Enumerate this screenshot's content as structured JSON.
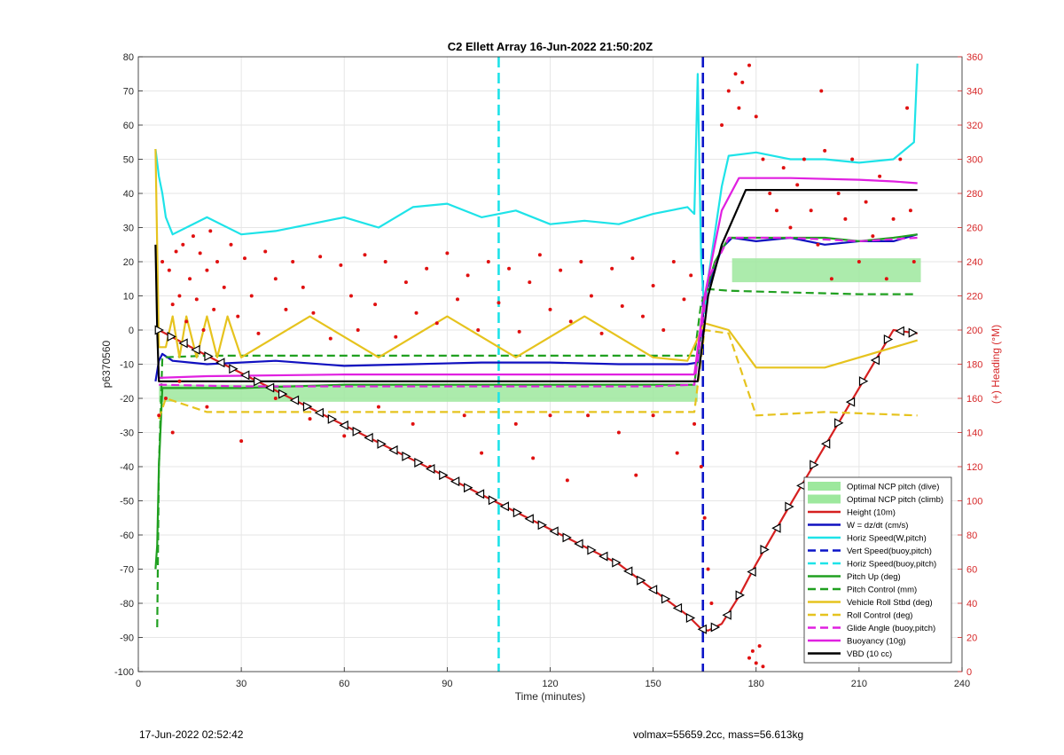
{
  "footer": {
    "timestamp": "17-Jun-2022 02:52:42",
    "params": "volmax=55659.2cc, mass=56.613kg"
  },
  "chart_data": {
    "type": "line",
    "title": "C2 Ellett Array 16-Jun-2022 21:50:20Z",
    "xlabel": "Time (minutes)",
    "ylabel": "p6370560",
    "y2label": "(+) Heading (°M)",
    "xlim": [
      0,
      240
    ],
    "ylim": [
      -100,
      80
    ],
    "y2lim": [
      0,
      360
    ],
    "xticks": [
      0,
      30,
      60,
      90,
      120,
      150,
      180,
      210,
      240
    ],
    "yticks": [
      -100,
      -90,
      -80,
      -70,
      -60,
      -50,
      -40,
      -30,
      -20,
      -10,
      0,
      10,
      20,
      30,
      40,
      50,
      60,
      70,
      80
    ],
    "y2ticks": [
      0,
      20,
      40,
      60,
      80,
      100,
      120,
      140,
      160,
      180,
      200,
      220,
      240,
      260,
      280,
      300,
      320,
      340,
      360
    ],
    "grid": true,
    "legend_position": "bottom-right",
    "vertical_lines": [
      {
        "x": 105,
        "color": "#1ee3e8",
        "style": "dashed"
      },
      {
        "x": 164.5,
        "color": "#0a14c8",
        "style": "dashed"
      }
    ],
    "series": [
      {
        "name": "Optimal NCP pitch (dive)",
        "color": "#9de89d",
        "style": "band",
        "x": [
          6,
          163
        ],
        "y_low": [
          -21,
          -21
        ],
        "y_high": [
          -16,
          -16
        ]
      },
      {
        "name": "Optimal NCP pitch (climb)",
        "color": "#9de89d",
        "style": "band",
        "x": [
          173,
          228
        ],
        "y_low": [
          14,
          14
        ],
        "y_high": [
          21,
          21
        ]
      },
      {
        "name": "Height (10m)",
        "color": "#d62020",
        "style": "solid",
        "x": [
          6,
          20,
          40,
          60,
          80,
          100,
          120,
          140,
          160,
          164,
          166,
          170,
          175,
          180,
          190,
          200,
          210,
          220,
          227
        ],
        "y": [
          0,
          -7.5,
          -17.7,
          -27.9,
          -38,
          -48.2,
          -58.3,
          -68.5,
          -83.5,
          -87.5,
          -88,
          -86,
          -78,
          -68.5,
          -51,
          -34,
          -17,
          0,
          -1
        ]
      },
      {
        "name": "W = dz/dt (cm/s)",
        "color": "#1010c0",
        "style": "solid",
        "x": [
          5,
          6,
          7,
          10,
          20,
          40,
          60,
          80,
          100,
          120,
          140,
          160,
          163,
          165,
          168,
          170,
          173,
          180,
          190,
          200,
          210,
          220,
          227
        ],
        "y": [
          -15,
          -9,
          -7,
          -9,
          -10,
          -9,
          -10.5,
          -10,
          -9.5,
          -9.5,
          -10,
          -10,
          -9.5,
          10,
          18,
          24,
          27,
          26,
          27,
          25,
          26,
          26,
          28
        ]
      },
      {
        "name": "Horiz Speed(W,pitch)",
        "color": "#1ee3e8",
        "style": "solid",
        "x": [
          5,
          6,
          7,
          8,
          10,
          20,
          30,
          40,
          50,
          60,
          70,
          80,
          90,
          100,
          110,
          120,
          130,
          140,
          150,
          160,
          162,
          163,
          164,
          165,
          166,
          170,
          172,
          180,
          190,
          200,
          210,
          220,
          226,
          227
        ],
        "y": [
          53,
          45,
          40,
          33,
          28,
          33,
          28,
          29,
          31,
          33,
          30,
          36,
          37,
          33,
          35,
          31,
          32,
          31,
          34,
          36,
          34,
          75,
          20,
          5,
          15,
          42,
          51,
          52,
          50,
          50,
          49,
          50,
          55,
          78
        ]
      },
      {
        "name": "Vert Speed(buoy,pitch)",
        "color": "#0a14c8",
        "style": "dashed",
        "x": [
          164.5,
          164.5
        ],
        "y": [
          -100,
          80
        ]
      },
      {
        "name": "Horiz Speed(buoy,pitch)",
        "color": "#1ee3e8",
        "style": "dashed",
        "x": [
          105,
          105
        ],
        "y": [
          -100,
          80
        ]
      },
      {
        "name": "Pitch Up (deg)",
        "color": "#20a020",
        "style": "solid",
        "x": [
          5,
          5.5,
          6,
          7,
          10,
          30,
          60,
          90,
          120,
          150,
          162,
          165,
          168,
          172,
          180,
          190,
          200,
          210,
          220,
          227
        ],
        "y": [
          -70,
          -63,
          -40,
          -17,
          -17,
          -17,
          -16,
          -16,
          -16,
          -16,
          -16,
          10,
          20,
          27,
          27,
          27,
          27,
          26,
          27,
          28
        ]
      },
      {
        "name": "Pitch Control (mm)",
        "color": "#20a020",
        "style": "dashed",
        "x": [
          5.5,
          6,
          7,
          20,
          60,
          100,
          140,
          162,
          164,
          166,
          172,
          190,
          210,
          227
        ],
        "y": [
          -87,
          -40,
          -8,
          -7.5,
          -7.5,
          -7.5,
          -7.5,
          -7.5,
          8,
          12,
          11.5,
          11,
          10.5,
          10.5
        ]
      },
      {
        "name": "Vehicle Roll Stbd (deg)",
        "color": "#e6c31e",
        "style": "solid",
        "x": [
          5,
          6,
          8,
          10,
          12,
          14,
          17,
          20,
          23,
          26,
          30,
          50,
          70,
          90,
          110,
          130,
          150,
          160,
          165,
          172,
          180,
          200,
          227
        ],
        "y": [
          53,
          -5,
          -5,
          4,
          -8,
          4,
          -8,
          4,
          -8,
          4,
          -8,
          4,
          -8,
          4,
          -8,
          4,
          -8,
          -9,
          2,
          0,
          -11,
          -11,
          -3
        ]
      },
      {
        "name": "Roll Control (deg)",
        "color": "#e6c31e",
        "style": "dashed",
        "x": [
          6,
          8,
          20,
          60,
          100,
          140,
          162,
          165,
          172,
          180,
          200,
          227
        ],
        "y": [
          -26,
          -20,
          -24,
          -24,
          -24,
          -24,
          -24,
          0,
          -1,
          -25,
          -24,
          -25
        ]
      },
      {
        "name": "Glide Angle (buoy,pitch)",
        "color": "#e020e0",
        "style": "dashed",
        "x": [
          6,
          30,
          60,
          90,
          120,
          150,
          162,
          166,
          172,
          190,
          210,
          227
        ],
        "y": [
          -16,
          -16.5,
          -16.5,
          -16.5,
          -16.5,
          -16.5,
          -16,
          15,
          27,
          27,
          26,
          27
        ]
      },
      {
        "name": "Buoyancy (10g)",
        "color": "#e020e0",
        "style": "solid",
        "x": [
          6,
          20,
          60,
          100,
          140,
          162,
          165,
          170,
          175,
          190,
          210,
          220,
          227
        ],
        "y": [
          -14,
          -13.5,
          -13,
          -13,
          -13,
          -13,
          10,
          35,
          44.5,
          44.5,
          44,
          43.5,
          43
        ]
      },
      {
        "name": "VBD (10 cc)",
        "color": "#000000",
        "style": "solid",
        "x": [
          5,
          5.5,
          6,
          7,
          20,
          60,
          100,
          140,
          163,
          166,
          170,
          177,
          200,
          227
        ],
        "y": [
          25,
          0,
          -15,
          -15,
          -15,
          -15,
          -15,
          -15,
          -15,
          10,
          25,
          41,
          41,
          41
        ]
      }
    ],
    "heading_points": [
      [
        7,
        240
      ],
      [
        9,
        235
      ],
      [
        10,
        215
      ],
      [
        11,
        246
      ],
      [
        12,
        220
      ],
      [
        13,
        250
      ],
      [
        14,
        205
      ],
      [
        15,
        230
      ],
      [
        16,
        255
      ],
      [
        17,
        218
      ],
      [
        18,
        245
      ],
      [
        19,
        200
      ],
      [
        20,
        235
      ],
      [
        21,
        258
      ],
      [
        22,
        212
      ],
      [
        23,
        240
      ],
      [
        25,
        225
      ],
      [
        27,
        250
      ],
      [
        29,
        208
      ],
      [
        31,
        242
      ],
      [
        33,
        220
      ],
      [
        35,
        198
      ],
      [
        37,
        246
      ],
      [
        40,
        230
      ],
      [
        43,
        212
      ],
      [
        45,
        240
      ],
      [
        48,
        225
      ],
      [
        51,
        210
      ],
      [
        53,
        243
      ],
      [
        56,
        195
      ],
      [
        59,
        238
      ],
      [
        62,
        220
      ],
      [
        64,
        200
      ],
      [
        66,
        244
      ],
      [
        69,
        215
      ],
      [
        72,
        240
      ],
      [
        75,
        196
      ],
      [
        78,
        228
      ],
      [
        81,
        210
      ],
      [
        84,
        236
      ],
      [
        87,
        204
      ],
      [
        90,
        245
      ],
      [
        93,
        218
      ],
      [
        96,
        232
      ],
      [
        99,
        200
      ],
      [
        102,
        240
      ],
      [
        105,
        216
      ],
      [
        108,
        236
      ],
      [
        111,
        199
      ],
      [
        114,
        228
      ],
      [
        117,
        244
      ],
      [
        120,
        212
      ],
      [
        123,
        235
      ],
      [
        126,
        205
      ],
      [
        129,
        240
      ],
      [
        132,
        220
      ],
      [
        135,
        198
      ],
      [
        138,
        236
      ],
      [
        141,
        214
      ],
      [
        144,
        242
      ],
      [
        147,
        208
      ],
      [
        150,
        226
      ],
      [
        153,
        200
      ],
      [
        156,
        240
      ],
      [
        159,
        218
      ],
      [
        161,
        232
      ],
      [
        6,
        150
      ],
      [
        8,
        160
      ],
      [
        10,
        140
      ],
      [
        12,
        170
      ],
      [
        20,
        155
      ],
      [
        30,
        135
      ],
      [
        40,
        160
      ],
      [
        50,
        148
      ],
      [
        60,
        138
      ],
      [
        70,
        155
      ],
      [
        80,
        145
      ],
      [
        85,
        120
      ],
      [
        95,
        150
      ],
      [
        100,
        128
      ],
      [
        110,
        145
      ],
      [
        115,
        125
      ],
      [
        120,
        150
      ],
      [
        125,
        112
      ],
      [
        131,
        150
      ],
      [
        140,
        140
      ],
      [
        145,
        115
      ],
      [
        150,
        150
      ],
      [
        157,
        128
      ],
      [
        162,
        145
      ],
      [
        164,
        120
      ],
      [
        165,
        90
      ],
      [
        166,
        60
      ],
      [
        167,
        40
      ],
      [
        170,
        320
      ],
      [
        172,
        340
      ],
      [
        174,
        350
      ],
      [
        175,
        330
      ],
      [
        176,
        345
      ],
      [
        178,
        355
      ],
      [
        180,
        325
      ],
      [
        182,
        300
      ],
      [
        184,
        280
      ],
      [
        186,
        270
      ],
      [
        188,
        295
      ],
      [
        190,
        260
      ],
      [
        192,
        285
      ],
      [
        194,
        300
      ],
      [
        196,
        270
      ],
      [
        198,
        250
      ],
      [
        199,
        340
      ],
      [
        200,
        305
      ],
      [
        202,
        230
      ],
      [
        204,
        280
      ],
      [
        206,
        265
      ],
      [
        208,
        300
      ],
      [
        210,
        240
      ],
      [
        212,
        275
      ],
      [
        214,
        255
      ],
      [
        216,
        290
      ],
      [
        218,
        230
      ],
      [
        220,
        265
      ],
      [
        222,
        300
      ],
      [
        224,
        330
      ],
      [
        225,
        270
      ],
      [
        226,
        240
      ],
      [
        178,
        8
      ],
      [
        179,
        12
      ],
      [
        180,
        5
      ],
      [
        181,
        15
      ],
      [
        182,
        3
      ]
    ]
  }
}
